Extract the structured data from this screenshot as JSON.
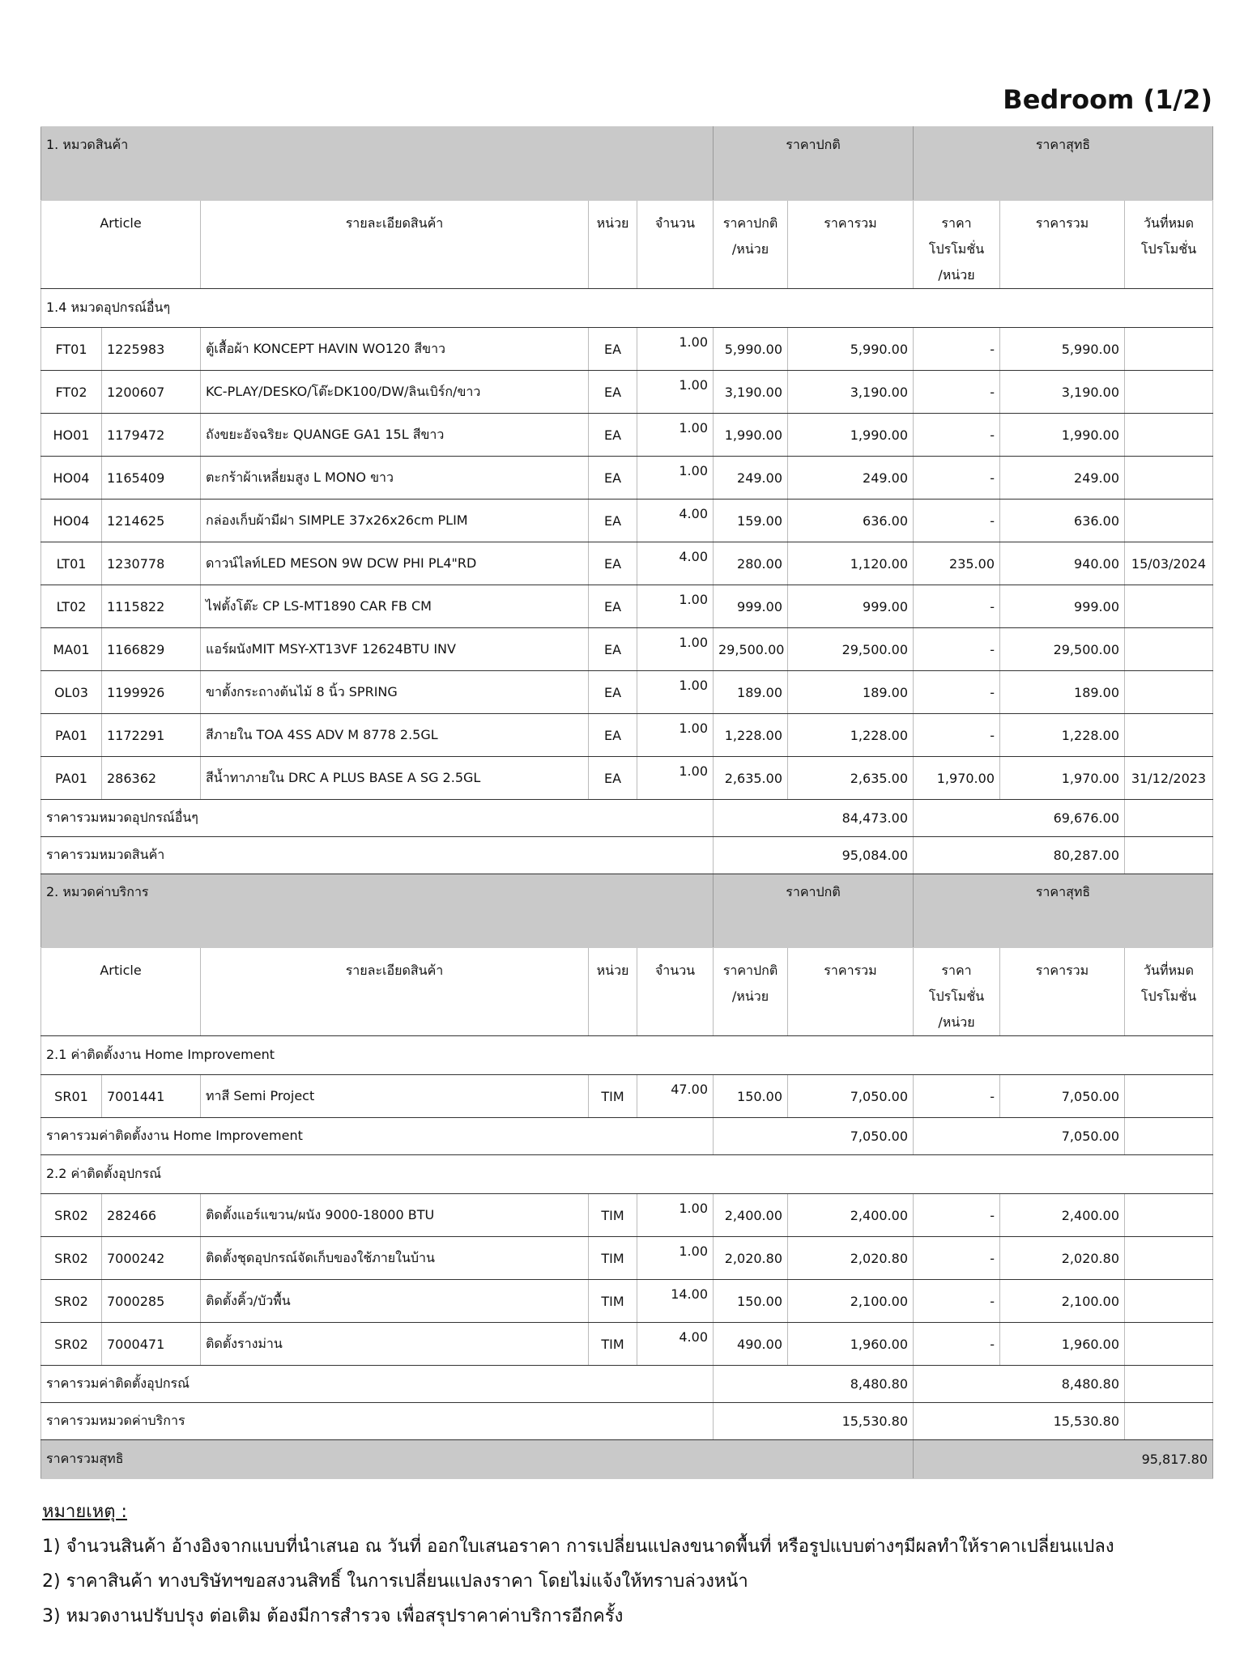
{
  "title": "Bedroom (1/2)",
  "sections": [
    {
      "header": {
        "category": "1. หมวดสินค้า",
        "regular": "ราคาปกติ",
        "net": "ราคาสุทธิ"
      },
      "columns": [
        [
          "Article"
        ],
        [
          "รายละเอียดสินค้า"
        ],
        [
          "หน่วย"
        ],
        [
          "จำนวน"
        ],
        [
          "ราคาปกติ",
          "/หน่วย"
        ],
        [
          "ราคารวม"
        ],
        [
          "ราคา",
          "โปรโมชั่น",
          "/หน่วย"
        ],
        [
          "ราคารวม"
        ],
        [
          "วันที่หมด",
          "โปรโมชั่น"
        ]
      ],
      "groups": [
        {
          "title": "1.4 หมวดอุปกรณ์อื่นๆ",
          "rows": [
            [
              "FT01",
              "1225983",
              "ตู้เสื้อผ้า KONCEPT HAVIN WO120 สีขาว",
              "EA",
              "1.00",
              "5,990.00",
              "5,990.00",
              "-",
              "5,990.00",
              null
            ],
            [
              "FT02",
              "1200607",
              "KC-PLAY/DESKO/โต๊ะDK100/DW/ลินเบิร์ก/ขาว",
              "EA",
              "1.00",
              "3,190.00",
              "3,190.00",
              "-",
              "3,190.00",
              null
            ],
            [
              "HO01",
              "1179472",
              "ถังขยะอัจฉริยะ QUANGE GA1 15L สีขาว",
              "EA",
              "1.00",
              "1,990.00",
              "1,990.00",
              "-",
              "1,990.00",
              null
            ],
            [
              "HO04",
              "1165409",
              "ตะกร้าผ้าเหลี่ยมสูง L MONO ขาว",
              "EA",
              "1.00",
              "249.00",
              "249.00",
              "-",
              "249.00",
              null
            ],
            [
              "HO04",
              "1214625",
              "กล่องเก็บผ้ามีฝา SIMPLE 37x26x26cm PLIM",
              "EA",
              "4.00",
              "159.00",
              "636.00",
              "-",
              "636.00",
              null
            ],
            [
              "LT01",
              "1230778",
              "ดาวน์ไลท์LED MESON 9W DCW PHI PL4\"RD",
              "EA",
              "4.00",
              "280.00",
              "1,120.00",
              "235.00",
              "940.00",
              "15/03/2024"
            ],
            [
              "LT02",
              "1115822",
              "ไฟตั้งโต๊ะ CP LS-MT1890 CAR FB CM",
              "EA",
              "1.00",
              "999.00",
              "999.00",
              "-",
              "999.00",
              null
            ],
            [
              "MA01",
              "1166829",
              "แอร์ผนังMIT MSY-XT13VF 12624BTU INV",
              "EA",
              "1.00",
              "29,500.00",
              "29,500.00",
              "-",
              "29,500.00",
              null
            ],
            [
              "OL03",
              "1199926",
              "ขาตั้งกระถางต้นไม้ 8 นิ้ว SPRING",
              "EA",
              "1.00",
              "189.00",
              "189.00",
              "-",
              "189.00",
              null
            ],
            [
              "PA01",
              "1172291",
              "สีภายใน TOA 4SS ADV M 8778 2.5GL",
              "EA",
              "1.00",
              "1,228.00",
              "1,228.00",
              "-",
              "1,228.00",
              null
            ],
            [
              "PA01",
              "286362",
              "สีน้ำทาภายใน DRC A PLUS BASE A SG 2.5GL",
              "EA",
              "1.00",
              "2,635.00",
              "2,635.00",
              "1,970.00",
              "1,970.00",
              "31/12/2023"
            ]
          ],
          "subtotal": {
            "label": "ราคารวมหมวดอุปกรณ์อื่นๆ",
            "regular": "84,473.00",
            "net": "69,676.00"
          }
        }
      ],
      "total": {
        "label": "ราคารวมหมวดสินค้า",
        "regular": "95,084.00",
        "net": "80,287.00"
      }
    },
    {
      "header": {
        "category": "2. หมวดค่าบริการ",
        "regular": "ราคาปกติ",
        "net": "ราคาสุทธิ"
      },
      "columns": [
        [
          "Article"
        ],
        [
          "รายละเอียดสินค้า"
        ],
        [
          "หน่วย"
        ],
        [
          "จำนวน"
        ],
        [
          "ราคาปกติ",
          "/หน่วย"
        ],
        [
          "ราคารวม"
        ],
        [
          "ราคา",
          "โปรโมชั่น",
          "/หน่วย"
        ],
        [
          "ราคารวม"
        ],
        [
          "วันที่หมด",
          "โปรโมชั่น"
        ]
      ],
      "groups": [
        {
          "title": "2.1 ค่าติดตั้งงาน Home Improvement",
          "rows": [
            [
              "SR01",
              "7001441",
              "ทาสี Semi Project",
              "TIM",
              "47.00",
              "150.00",
              "7,050.00",
              "-",
              "7,050.00",
              null
            ]
          ],
          "subtotal": {
            "label": "ราคารวมค่าติดตั้งงาน Home Improvement",
            "regular": "7,050.00",
            "net": "7,050.00"
          }
        },
        {
          "title": "2.2 ค่าติดตั้งอุปกรณ์",
          "rows": [
            [
              "SR02",
              "282466",
              "ติดตั้งแอร์แขวน/ผนัง 9000-18000 BTU",
              "TIM",
              "1.00",
              "2,400.00",
              "2,400.00",
              "-",
              "2,400.00",
              null
            ],
            [
              "SR02",
              "7000242",
              "ติดตั้งชุดอุปกรณ์จัดเก็บของใช้ภายในบ้าน",
              "TIM",
              "1.00",
              "2,020.80",
              "2,020.80",
              "-",
              "2,020.80",
              null
            ],
            [
              "SR02",
              "7000285",
              "ติดตั้งคิ้ว/บัวพื้น",
              "TIM",
              "14.00",
              "150.00",
              "2,100.00",
              "-",
              "2,100.00",
              null
            ],
            [
              "SR02",
              "7000471",
              "ติดตั้งรางม่าน",
              "TIM",
              "4.00",
              "490.00",
              "1,960.00",
              "-",
              "1,960.00",
              null
            ]
          ],
          "subtotal": {
            "label": "ราคารวมค่าติดตั้งอุปกรณ์",
            "regular": "8,480.80",
            "net": "8,480.80"
          }
        }
      ],
      "total": {
        "label": "ราคารวมหมวดค่าบริการ",
        "regular": "15,530.80",
        "net": "15,530.80"
      }
    }
  ],
  "grand_total": {
    "label": "ราคารวมสุทธิ",
    "value": "95,817.80"
  },
  "notes": {
    "title": "หมายเหตุ :",
    "items": [
      "1) จำนวนสินค้า อ้างอิงจากแบบที่นำเสนอ ณ วันที่ ออกใบเสนอราคา การเปลี่ยนแปลงขนาดพื้นที่ หรือรูปแบบต่างๆมีผลทำให้ราคาเปลี่ยนแปลง",
      "2) ราคาสินค้า ทางบริษัทฯขอสงวนสิทธิ์ ในการเปลี่ยนแปลงราคา โดยไม่แจ้งให้ทราบล่วงหน้า",
      "3) หมวดงานปรับปรุง ต่อเติม ต้องมีการสำรวจ เพื่อสรุปราคาค่าบริการอีกครั้ง"
    ]
  }
}
